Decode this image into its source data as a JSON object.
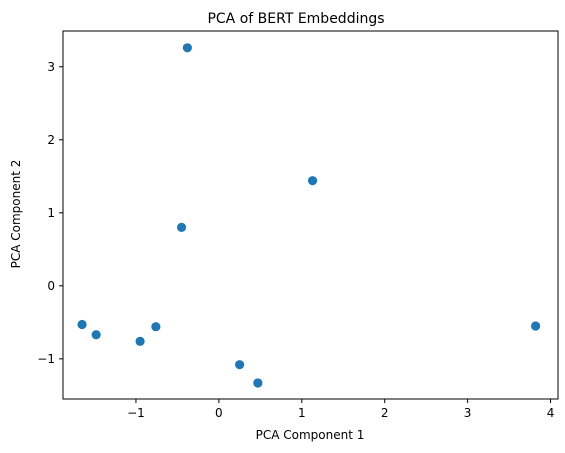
{
  "chart_data": {
    "type": "scatter",
    "title": "PCA of BERT Embeddings",
    "xlabel": "PCA Component 1",
    "ylabel": "PCA Component 2",
    "xlim": [
      -1.88,
      4.09
    ],
    "ylim": [
      -1.55,
      3.49
    ],
    "xticks": [
      -1,
      0,
      1,
      2,
      3,
      4
    ],
    "xtick_labels": [
      "−1",
      "0",
      "1",
      "2",
      "3",
      "4"
    ],
    "yticks": [
      -1,
      0,
      1,
      2,
      3
    ],
    "ytick_labels": [
      "−1",
      "0",
      "1",
      "2",
      "3"
    ],
    "grid": false,
    "marker_color": "#1f77b4",
    "points": [
      {
        "x": -0.38,
        "y": 3.26
      },
      {
        "x": 1.13,
        "y": 1.44
      },
      {
        "x": -0.45,
        "y": 0.8
      },
      {
        "x": -1.65,
        "y": -0.53
      },
      {
        "x": -1.48,
        "y": -0.67
      },
      {
        "x": -0.76,
        "y": -0.56
      },
      {
        "x": -0.95,
        "y": -0.76
      },
      {
        "x": 0.25,
        "y": -1.08
      },
      {
        "x": 0.47,
        "y": -1.33
      },
      {
        "x": 3.82,
        "y": -0.55
      }
    ]
  }
}
